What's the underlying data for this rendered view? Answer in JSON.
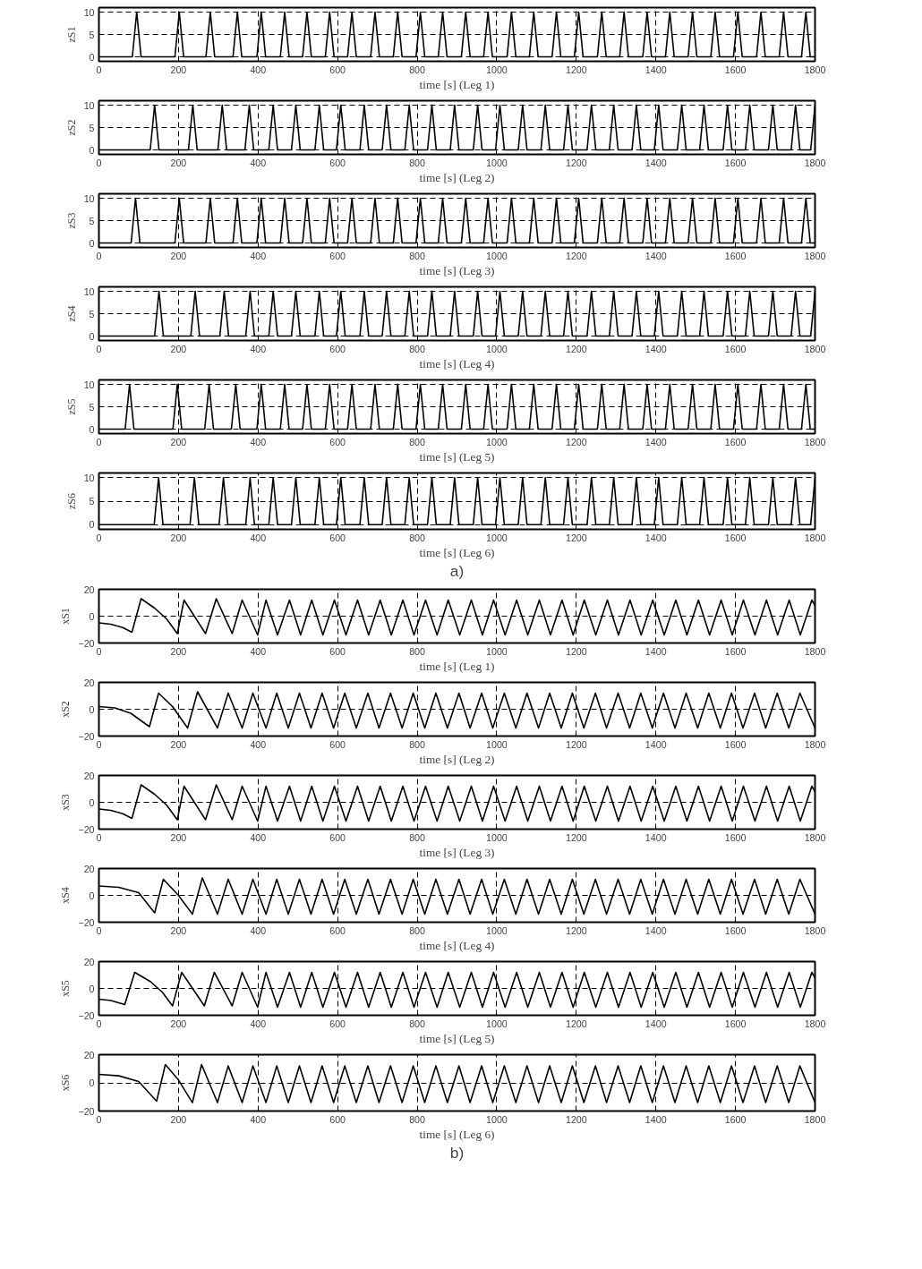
{
  "chart_data": [
    {
      "type": "line",
      "ylabel": "zS1",
      "xlabel": "time [s] (Leg 1)",
      "xlim": [
        0,
        1800
      ],
      "xticks": [
        0,
        200,
        400,
        600,
        800,
        1000,
        1200,
        1400,
        1600,
        1800
      ],
      "ylim": [
        -1,
        11
      ],
      "yticks": [
        0,
        5,
        10
      ],
      "grid": true,
      "color": "#000000",
      "x": [
        0,
        84,
        95,
        106,
        191,
        202,
        213,
        269,
        280,
        291,
        337,
        348,
        359,
        397,
        408,
        419,
        456,
        467,
        478,
        512,
        523,
        534,
        569,
        580,
        591,
        625,
        636,
        647,
        683,
        694,
        705,
        740,
        751,
        762,
        797,
        808,
        819,
        853,
        864,
        875,
        911,
        922,
        933,
        967,
        978,
        989,
        1026,
        1037,
        1048,
        1082,
        1093,
        1104,
        1139,
        1150,
        1161,
        1195,
        1206,
        1217,
        1253,
        1264,
        1275,
        1309,
        1320,
        1331,
        1367,
        1378,
        1389,
        1424,
        1435,
        1446,
        1481,
        1492,
        1503,
        1538,
        1549,
        1560,
        1595,
        1606,
        1617,
        1653,
        1664,
        1675,
        1710,
        1721,
        1732,
        1766,
        1777,
        1788,
        1800
      ],
      "values": [
        0,
        0,
        10,
        0,
        0,
        10,
        0,
        0,
        10,
        0,
        0,
        10,
        0,
        0,
        10,
        0,
        0,
        10,
        0,
        0,
        10,
        0,
        0,
        10,
        0,
        0,
        10,
        0,
        0,
        10,
        0,
        0,
        10,
        0,
        0,
        10,
        0,
        0,
        10,
        0,
        0,
        10,
        0,
        0,
        10,
        0,
        0,
        10,
        0,
        0,
        10,
        0,
        0,
        10,
        0,
        0,
        10,
        0,
        0,
        10,
        0,
        0,
        10,
        0,
        0,
        10,
        0,
        0,
        10,
        0,
        0,
        10,
        0,
        0,
        10,
        0,
        0,
        10,
        0,
        0,
        10,
        0,
        0,
        10,
        0,
        0,
        10,
        0,
        0
      ]
    },
    {
      "type": "line",
      "ylabel": "zS2",
      "xlabel": "time [s] (Leg 2)",
      "xlim": [
        0,
        1800
      ],
      "xticks": [
        0,
        200,
        400,
        600,
        800,
        1000,
        1200,
        1400,
        1600,
        1800
      ],
      "ylim": [
        -1,
        11
      ],
      "yticks": [
        0,
        5,
        10
      ],
      "grid": true,
      "color": "#000000",
      "x": [
        0,
        129,
        140,
        151,
        225,
        236,
        247,
        299,
        310,
        321,
        367,
        378,
        389,
        427,
        438,
        449,
        484,
        495,
        506,
        543,
        554,
        565,
        597,
        608,
        619,
        656,
        667,
        678,
        712,
        723,
        734,
        769,
        780,
        791,
        826,
        837,
        848,
        883,
        894,
        905,
        941,
        952,
        963,
        997,
        1008,
        1019,
        1054,
        1065,
        1076,
        1111,
        1122,
        1133,
        1168,
        1179,
        1190,
        1227,
        1238,
        1249,
        1283,
        1294,
        1305,
        1340,
        1351,
        1362,
        1396,
        1407,
        1418,
        1454,
        1465,
        1476,
        1510,
        1521,
        1532,
        1569,
        1580,
        1591,
        1625,
        1636,
        1647,
        1683,
        1694,
        1705,
        1740,
        1751,
        1762,
        1789,
        1800
      ],
      "values": [
        0,
        0,
        10,
        0,
        0,
        10,
        0,
        0,
        10,
        0,
        0,
        10,
        0,
        0,
        10,
        0,
        0,
        10,
        0,
        0,
        10,
        0,
        0,
        10,
        0,
        0,
        10,
        0,
        0,
        10,
        0,
        0,
        10,
        0,
        0,
        10,
        0,
        0,
        10,
        0,
        0,
        10,
        0,
        0,
        10,
        0,
        0,
        10,
        0,
        0,
        10,
        0,
        0,
        10,
        0,
        0,
        10,
        0,
        0,
        10,
        0,
        0,
        10,
        0,
        0,
        10,
        0,
        0,
        10,
        0,
        0,
        10,
        0,
        0,
        10,
        0,
        0,
        10,
        0,
        0,
        10,
        0,
        0,
        10,
        0,
        0,
        10
      ]
    },
    {
      "type": "line",
      "ylabel": "zS3",
      "xlabel": "time [s] (Leg 3)",
      "xlim": [
        0,
        1800
      ],
      "xticks": [
        0,
        200,
        400,
        600,
        800,
        1000,
        1200,
        1400,
        1600,
        1800
      ],
      "ylim": [
        -1,
        11
      ],
      "yticks": [
        0,
        5,
        10
      ],
      "grid": true,
      "color": "#000000",
      "x": [
        0,
        81,
        92,
        103,
        191,
        202,
        213,
        269,
        280,
        291,
        337,
        348,
        359,
        397,
        408,
        419,
        456,
        467,
        478,
        512,
        523,
        534,
        569,
        580,
        591,
        625,
        636,
        647,
        683,
        694,
        705,
        740,
        751,
        762,
        797,
        808,
        819,
        853,
        864,
        875,
        911,
        922,
        933,
        967,
        978,
        989,
        1026,
        1037,
        1048,
        1082,
        1093,
        1104,
        1139,
        1150,
        1161,
        1195,
        1206,
        1217,
        1253,
        1264,
        1275,
        1309,
        1320,
        1331,
        1367,
        1378,
        1389,
        1424,
        1435,
        1446,
        1481,
        1492,
        1503,
        1538,
        1549,
        1560,
        1595,
        1606,
        1617,
        1653,
        1664,
        1675,
        1710,
        1721,
        1732,
        1766,
        1777,
        1788,
        1800
      ],
      "values": [
        0,
        0,
        10,
        0,
        0,
        10,
        0,
        0,
        10,
        0,
        0,
        10,
        0,
        0,
        10,
        0,
        0,
        10,
        0,
        0,
        10,
        0,
        0,
        10,
        0,
        0,
        10,
        0,
        0,
        10,
        0,
        0,
        10,
        0,
        0,
        10,
        0,
        0,
        10,
        0,
        0,
        10,
        0,
        0,
        10,
        0,
        0,
        10,
        0,
        0,
        10,
        0,
        0,
        10,
        0,
        0,
        10,
        0,
        0,
        10,
        0,
        0,
        10,
        0,
        0,
        10,
        0,
        0,
        10,
        0,
        0,
        10,
        0,
        0,
        10,
        0,
        0,
        10,
        0,
        0,
        10,
        0,
        0,
        10,
        0,
        0,
        10,
        0,
        0
      ]
    },
    {
      "type": "line",
      "ylabel": "zS4",
      "xlabel": "time [s] (Leg 4)",
      "xlim": [
        0,
        1800
      ],
      "xticks": [
        0,
        200,
        400,
        600,
        800,
        1000,
        1200,
        1400,
        1600,
        1800
      ],
      "ylim": [
        -1,
        11
      ],
      "yticks": [
        0,
        5,
        10
      ],
      "grid": true,
      "color": "#000000",
      "x": [
        0,
        140,
        151,
        162,
        231,
        242,
        253,
        304,
        315,
        326,
        369,
        380,
        391,
        427,
        438,
        449,
        484,
        495,
        506,
        543,
        554,
        565,
        597,
        608,
        619,
        656,
        667,
        678,
        712,
        723,
        734,
        769,
        780,
        791,
        826,
        837,
        848,
        883,
        894,
        905,
        941,
        952,
        963,
        997,
        1008,
        1019,
        1054,
        1065,
        1076,
        1111,
        1122,
        1133,
        1168,
        1179,
        1190,
        1227,
        1238,
        1249,
        1283,
        1294,
        1305,
        1340,
        1351,
        1362,
        1396,
        1407,
        1418,
        1454,
        1465,
        1476,
        1510,
        1521,
        1532,
        1569,
        1580,
        1591,
        1625,
        1636,
        1647,
        1683,
        1694,
        1705,
        1740,
        1751,
        1762,
        1789,
        1800
      ],
      "values": [
        0,
        0,
        10,
        0,
        0,
        10,
        0,
        0,
        10,
        0,
        0,
        10,
        0,
        0,
        10,
        0,
        0,
        10,
        0,
        0,
        10,
        0,
        0,
        10,
        0,
        0,
        10,
        0,
        0,
        10,
        0,
        0,
        10,
        0,
        0,
        10,
        0,
        0,
        10,
        0,
        0,
        10,
        0,
        0,
        10,
        0,
        0,
        10,
        0,
        0,
        10,
        0,
        0,
        10,
        0,
        0,
        10,
        0,
        0,
        10,
        0,
        0,
        10,
        0,
        0,
        10,
        0,
        0,
        10,
        0,
        0,
        10,
        0,
        0,
        10,
        0,
        0,
        10,
        0,
        0,
        10,
        0,
        0,
        10,
        0,
        0,
        10
      ]
    },
    {
      "type": "line",
      "ylabel": "zS5",
      "xlabel": "time [s] (Leg 5)",
      "xlim": [
        0,
        1800
      ],
      "xticks": [
        0,
        200,
        400,
        600,
        800,
        1000,
        1200,
        1400,
        1600,
        1800
      ],
      "ylim": [
        -1,
        11
      ],
      "yticks": [
        0,
        5,
        10
      ],
      "grid": true,
      "color": "#000000",
      "x": [
        0,
        66,
        77,
        88,
        186,
        197,
        208,
        266,
        277,
        288,
        333,
        344,
        355,
        397,
        408,
        419,
        456,
        467,
        478,
        512,
        523,
        534,
        569,
        580,
        591,
        625,
        636,
        647,
        683,
        694,
        705,
        740,
        751,
        762,
        797,
        808,
        819,
        853,
        864,
        875,
        911,
        922,
        933,
        967,
        978,
        989,
        1026,
        1037,
        1048,
        1082,
        1093,
        1104,
        1139,
        1150,
        1161,
        1195,
        1206,
        1217,
        1253,
        1264,
        1275,
        1309,
        1320,
        1331,
        1367,
        1378,
        1389,
        1424,
        1435,
        1446,
        1481,
        1492,
        1503,
        1538,
        1549,
        1560,
        1595,
        1606,
        1617,
        1653,
        1664,
        1675,
        1710,
        1721,
        1732,
        1766,
        1777,
        1788,
        1800
      ],
      "values": [
        0,
        0,
        10,
        0,
        0,
        10,
        0,
        0,
        10,
        0,
        0,
        10,
        0,
        0,
        10,
        0,
        0,
        10,
        0,
        0,
        10,
        0,
        0,
        10,
        0,
        0,
        10,
        0,
        0,
        10,
        0,
        0,
        10,
        0,
        0,
        10,
        0,
        0,
        10,
        0,
        0,
        10,
        0,
        0,
        10,
        0,
        0,
        10,
        0,
        0,
        10,
        0,
        0,
        10,
        0,
        0,
        10,
        0,
        0,
        10,
        0,
        0,
        10,
        0,
        0,
        10,
        0,
        0,
        10,
        0,
        0,
        10,
        0,
        0,
        10,
        0,
        0,
        10,
        0,
        0,
        10,
        0,
        0,
        10,
        0,
        0,
        10,
        0,
        0
      ]
    },
    {
      "type": "line",
      "ylabel": "zS6",
      "xlabel": "time [s] (Leg 6)",
      "xlim": [
        0,
        1800
      ],
      "xticks": [
        0,
        200,
        400,
        600,
        800,
        1000,
        1200,
        1400,
        1600,
        1800
      ],
      "ylim": [
        -1,
        11
      ],
      "yticks": [
        0,
        5,
        10
      ],
      "grid": true,
      "color": "#000000",
      "annotations": [
        "a)"
      ],
      "x": [
        0,
        139,
        150,
        161,
        229,
        240,
        251,
        302,
        313,
        324,
        369,
        380,
        391,
        427,
        438,
        449,
        484,
        495,
        506,
        543,
        554,
        565,
        597,
        608,
        619,
        656,
        667,
        678,
        712,
        723,
        734,
        769,
        780,
        791,
        826,
        837,
        848,
        883,
        894,
        905,
        941,
        952,
        963,
        997,
        1008,
        1019,
        1054,
        1065,
        1076,
        1111,
        1122,
        1133,
        1168,
        1179,
        1190,
        1227,
        1238,
        1249,
        1283,
        1294,
        1305,
        1340,
        1351,
        1362,
        1396,
        1407,
        1418,
        1454,
        1465,
        1476,
        1510,
        1521,
        1532,
        1569,
        1580,
        1591,
        1625,
        1636,
        1647,
        1683,
        1694,
        1705,
        1740,
        1751,
        1762,
        1789,
        1800
      ],
      "values": [
        0,
        0,
        10,
        0,
        0,
        10,
        0,
        0,
        10,
        0,
        0,
        10,
        0,
        0,
        10,
        0,
        0,
        10,
        0,
        0,
        10,
        0,
        0,
        10,
        0,
        0,
        10,
        0,
        0,
        10,
        0,
        0,
        10,
        0,
        0,
        10,
        0,
        0,
        10,
        0,
        0,
        10,
        0,
        0,
        10,
        0,
        0,
        10,
        0,
        0,
        10,
        0,
        0,
        10,
        0,
        0,
        10,
        0,
        0,
        10,
        0,
        0,
        10,
        0,
        0,
        10,
        0,
        0,
        10,
        0,
        0,
        10,
        0,
        0,
        10,
        0,
        0,
        10,
        0,
        0,
        10,
        0,
        0,
        10,
        0,
        0,
        10
      ]
    },
    {
      "type": "line",
      "ylabel": "xS1",
      "xlabel": "time [s] (Leg 1)",
      "xlim": [
        0,
        1800
      ],
      "xticks": [
        0,
        200,
        400,
        600,
        800,
        1000,
        1200,
        1400,
        1600,
        1800
      ],
      "ylim": [
        -20,
        20
      ],
      "yticks": [
        -20,
        0,
        20
      ],
      "grid": true,
      "color": "#000000",
      "x": [
        0,
        30,
        60,
        83,
        106,
        140,
        170,
        197,
        214,
        268,
        295,
        335,
        360,
        399,
        420,
        449,
        479,
        507,
        535,
        563,
        592,
        621,
        650,
        678,
        707,
        735,
        764,
        792,
        821,
        850,
        878,
        907,
        936,
        964,
        992,
        1021,
        1050,
        1078,
        1107,
        1135,
        1164,
        1192,
        1220,
        1249,
        1278,
        1306,
        1335,
        1363,
        1392,
        1421,
        1450,
        1478,
        1507,
        1535,
        1564,
        1592,
        1620,
        1649,
        1678,
        1706,
        1735,
        1763,
        1792,
        1800
      ],
      "values": [
        -5,
        -6,
        -8.5,
        -12,
        13,
        6,
        -2,
        -13,
        12,
        -13,
        13,
        -13,
        12,
        -14,
        12,
        -14,
        12,
        -14,
        12,
        -14,
        12,
        -14,
        12,
        -14,
        12,
        -14,
        12,
        -14,
        12,
        -14,
        12,
        -14,
        12,
        -14,
        12,
        -14,
        12,
        -14,
        12,
        -14,
        12,
        -14,
        12,
        -14,
        12,
        -14,
        12,
        -14,
        12,
        -14,
        12,
        -14,
        12,
        -14,
        12,
        -14,
        12,
        -14,
        12,
        -14,
        12,
        -14,
        12,
        8
      ]
    },
    {
      "type": "line",
      "ylabel": "xS2",
      "xlabel": "time [s] (Leg 2)",
      "xlim": [
        0,
        1800
      ],
      "xticks": [
        0,
        200,
        400,
        600,
        800,
        1000,
        1200,
        1400,
        1600,
        1800
      ],
      "ylim": [
        -20,
        20
      ],
      "yticks": [
        -20,
        0,
        20
      ],
      "grid": true,
      "color": "#000000",
      "x": [
        0,
        40,
        80,
        127,
        150,
        185,
        223,
        248,
        298,
        325,
        360,
        387,
        420,
        447,
        476,
        504,
        533,
        561,
        590,
        618,
        647,
        676,
        704,
        733,
        762,
        790,
        819,
        847,
        876,
        905,
        933,
        962,
        990,
        1019,
        1048,
        1076,
        1105,
        1133,
        1162,
        1190,
        1219,
        1248,
        1276,
        1305,
        1334,
        1362,
        1391,
        1419,
        1448,
        1476,
        1505,
        1533,
        1562,
        1590,
        1619,
        1648,
        1676,
        1705,
        1734,
        1762,
        1800
      ],
      "values": [
        2,
        1,
        -3,
        -13,
        12,
        2,
        -14,
        13,
        -14,
        12,
        -14,
        12,
        -14,
        12,
        -14,
        12,
        -14,
        12,
        -14,
        12,
        -14,
        12,
        -14,
        12,
        -14,
        12,
        -14,
        12,
        -14,
        12,
        -14,
        12,
        -14,
        12,
        -14,
        12,
        -14,
        12,
        -14,
        12,
        -14,
        12,
        -14,
        12,
        -14,
        12,
        -14,
        12,
        -14,
        12,
        -14,
        12,
        -14,
        12,
        -14,
        12,
        -14,
        12,
        -14,
        12,
        -14
      ]
    },
    {
      "type": "line",
      "ylabel": "xS3",
      "xlabel": "time [s] (Leg 3)",
      "xlim": [
        0,
        1800
      ],
      "xticks": [
        0,
        200,
        400,
        600,
        800,
        1000,
        1200,
        1400,
        1600,
        1800
      ],
      "ylim": [
        -20,
        20
      ],
      "yticks": [
        -20,
        0,
        20
      ],
      "grid": true,
      "color": "#000000",
      "x": [
        0,
        30,
        60,
        83,
        106,
        140,
        170,
        197,
        214,
        268,
        295,
        335,
        360,
        399,
        420,
        449,
        479,
        507,
        535,
        563,
        592,
        621,
        650,
        678,
        707,
        735,
        764,
        792,
        821,
        850,
        878,
        907,
        936,
        964,
        992,
        1021,
        1050,
        1078,
        1107,
        1135,
        1164,
        1192,
        1220,
        1249,
        1278,
        1306,
        1335,
        1363,
        1392,
        1421,
        1450,
        1478,
        1507,
        1535,
        1564,
        1592,
        1620,
        1649,
        1678,
        1706,
        1735,
        1763,
        1792,
        1800
      ],
      "values": [
        -5,
        -6,
        -8.5,
        -12,
        13,
        6,
        -2,
        -13,
        12,
        -13,
        13,
        -13,
        12,
        -14,
        12,
        -14,
        12,
        -14,
        12,
        -14,
        12,
        -14,
        12,
        -14,
        12,
        -14,
        12,
        -14,
        12,
        -14,
        12,
        -14,
        12,
        -14,
        12,
        -14,
        12,
        -14,
        12,
        -14,
        12,
        -14,
        12,
        -14,
        12,
        -14,
        12,
        -14,
        12,
        -14,
        12,
        -14,
        12,
        -14,
        12,
        -14,
        12,
        -14,
        12,
        -14,
        12,
        -14,
        12,
        8
      ]
    },
    {
      "type": "line",
      "ylabel": "xS4",
      "xlabel": "time [s] (Leg 4)",
      "xlim": [
        0,
        1800
      ],
      "xticks": [
        0,
        200,
        400,
        600,
        800,
        1000,
        1200,
        1400,
        1600,
        1800
      ],
      "ylim": [
        -20,
        20
      ],
      "yticks": [
        -20,
        0,
        20
      ],
      "grid": true,
      "color": "#000000",
      "x": [
        0,
        50,
        100,
        140,
        162,
        200,
        235,
        260,
        298,
        325,
        360,
        387,
        420,
        447,
        476,
        504,
        533,
        561,
        590,
        618,
        647,
        676,
        704,
        733,
        762,
        790,
        819,
        847,
        876,
        905,
        933,
        962,
        990,
        1019,
        1048,
        1076,
        1105,
        1133,
        1162,
        1190,
        1219,
        1248,
        1276,
        1305,
        1334,
        1362,
        1391,
        1419,
        1448,
        1476,
        1505,
        1533,
        1562,
        1590,
        1619,
        1648,
        1676,
        1705,
        1734,
        1762,
        1800
      ],
      "values": [
        7,
        6,
        2,
        -13,
        12,
        0,
        -14,
        13,
        -14,
        12,
        -14,
        12,
        -14,
        12,
        -14,
        12,
        -14,
        12,
        -14,
        12,
        -14,
        12,
        -14,
        12,
        -14,
        12,
        -14,
        12,
        -14,
        12,
        -14,
        12,
        -14,
        12,
        -14,
        12,
        -14,
        12,
        -14,
        12,
        -14,
        12,
        -14,
        12,
        -14,
        12,
        -14,
        12,
        -14,
        12,
        -14,
        12,
        -14,
        12,
        -14,
        12,
        -14,
        12,
        -14,
        12,
        -14
      ]
    },
    {
      "type": "line",
      "ylabel": "xS5",
      "xlabel": "time [s] (Leg 5)",
      "xlim": [
        0,
        1800
      ],
      "xticks": [
        0,
        200,
        400,
        600,
        800,
        1000,
        1200,
        1400,
        1600,
        1800
      ],
      "ylim": [
        -20,
        20
      ],
      "yticks": [
        -20,
        0,
        20
      ],
      "grid": true,
      "color": "#000000",
      "x": [
        0,
        30,
        65,
        90,
        130,
        160,
        185,
        208,
        265,
        290,
        335,
        360,
        399,
        420,
        449,
        479,
        507,
        535,
        563,
        592,
        621,
        650,
        678,
        707,
        735,
        764,
        792,
        821,
        850,
        878,
        907,
        936,
        964,
        992,
        1021,
        1050,
        1078,
        1107,
        1135,
        1164,
        1192,
        1220,
        1249,
        1278,
        1306,
        1335,
        1363,
        1392,
        1421,
        1450,
        1478,
        1507,
        1535,
        1564,
        1592,
        1620,
        1649,
        1678,
        1706,
        1735,
        1763,
        1792,
        1800
      ],
      "values": [
        -8,
        -9,
        -12,
        12,
        5,
        -3,
        -13,
        12,
        -13,
        12,
        -13,
        12,
        -14,
        12,
        -14,
        12,
        -14,
        12,
        -14,
        12,
        -14,
        12,
        -14,
        12,
        -14,
        12,
        -14,
        12,
        -14,
        12,
        -14,
        12,
        -14,
        12,
        -14,
        12,
        -14,
        12,
        -14,
        12,
        -14,
        12,
        -14,
        12,
        -14,
        12,
        -14,
        12,
        -14,
        12,
        -14,
        12,
        -14,
        12,
        -14,
        12,
        -14,
        12,
        -14,
        12,
        -14,
        12,
        8
      ]
    },
    {
      "type": "line",
      "ylabel": "xS6",
      "xlabel": "time [s] (Leg 6)",
      "xlim": [
        0,
        1800
      ],
      "xticks": [
        0,
        200,
        400,
        600,
        800,
        1000,
        1200,
        1400,
        1600,
        1800
      ],
      "ylim": [
        -20,
        20
      ],
      "yticks": [
        -20,
        0,
        20
      ],
      "grid": true,
      "color": "#000000",
      "annotations": [
        "b)"
      ],
      "x": [
        0,
        50,
        100,
        145,
        167,
        200,
        235,
        258,
        298,
        325,
        360,
        387,
        420,
        447,
        476,
        504,
        533,
        561,
        590,
        618,
        647,
        676,
        704,
        733,
        762,
        790,
        819,
        847,
        876,
        905,
        933,
        962,
        990,
        1019,
        1048,
        1076,
        1105,
        1133,
        1162,
        1190,
        1219,
        1248,
        1276,
        1305,
        1334,
        1362,
        1391,
        1419,
        1448,
        1476,
        1505,
        1533,
        1562,
        1590,
        1619,
        1648,
        1676,
        1705,
        1734,
        1762,
        1800
      ],
      "values": [
        6,
        5,
        1,
        -13,
        13,
        2,
        -14,
        13,
        -14,
        12,
        -14,
        12,
        -14,
        12,
        -14,
        12,
        -14,
        12,
        -14,
        12,
        -14,
        12,
        -14,
        12,
        -14,
        12,
        -14,
        12,
        -14,
        12,
        -14,
        12,
        -14,
        12,
        -14,
        12,
        -14,
        12,
        -14,
        12,
        -14,
        12,
        -14,
        12,
        -14,
        12,
        -14,
        12,
        -14,
        12,
        -14,
        12,
        -14,
        12,
        -14,
        12,
        -14,
        12,
        -14,
        12,
        -14
      ]
    }
  ]
}
